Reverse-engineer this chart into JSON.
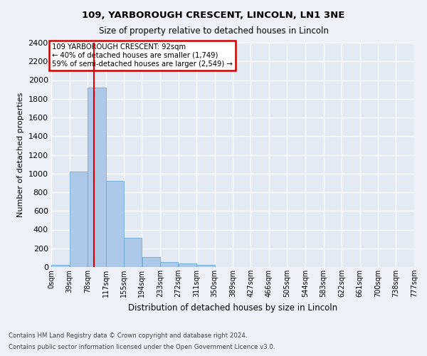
{
  "title": "109, YARBOROUGH CRESCENT, LINCOLN, LN1 3NE",
  "subtitle": "Size of property relative to detached houses in Lincoln",
  "xlabel": "Distribution of detached houses by size in Lincoln",
  "ylabel": "Number of detached properties",
  "bin_edges": [
    0,
    39,
    78,
    117,
    155,
    194,
    233,
    272,
    311,
    350,
    389,
    427,
    466,
    505,
    544,
    583,
    622,
    661,
    700,
    738,
    777
  ],
  "bin_labels": [
    "0sqm",
    "39sqm",
    "78sqm",
    "117sqm",
    "155sqm",
    "194sqm",
    "233sqm",
    "272sqm",
    "311sqm",
    "350sqm",
    "389sqm",
    "427sqm",
    "466sqm",
    "505sqm",
    "544sqm",
    "583sqm",
    "622sqm",
    "661sqm",
    "700sqm",
    "738sqm",
    "777sqm"
  ],
  "bar_heights": [
    20,
    1020,
    1920,
    920,
    315,
    110,
    55,
    35,
    20,
    0,
    0,
    0,
    0,
    0,
    0,
    0,
    0,
    0,
    0,
    0
  ],
  "bar_color": "#adc8e8",
  "bar_edgecolor": "#6aaad4",
  "property_size": 92,
  "red_line_color": "#dd0000",
  "annotation_text": "109 YARBOROUGH CRESCENT: 92sqm\n← 40% of detached houses are smaller (1,749)\n59% of semi-detached houses are larger (2,549) →",
  "annotation_boxcolor": "white",
  "annotation_edgecolor": "#cc0000",
  "ylim": [
    0,
    2400
  ],
  "yticks": [
    0,
    200,
    400,
    600,
    800,
    1000,
    1200,
    1400,
    1600,
    1800,
    2000,
    2200,
    2400
  ],
  "footer_line1": "Contains HM Land Registry data © Crown copyright and database right 2024.",
  "footer_line2": "Contains public sector information licensed under the Open Government Licence v3.0.",
  "bg_color": "#eef2f8",
  "plot_bg_color": "#e4eaf4"
}
